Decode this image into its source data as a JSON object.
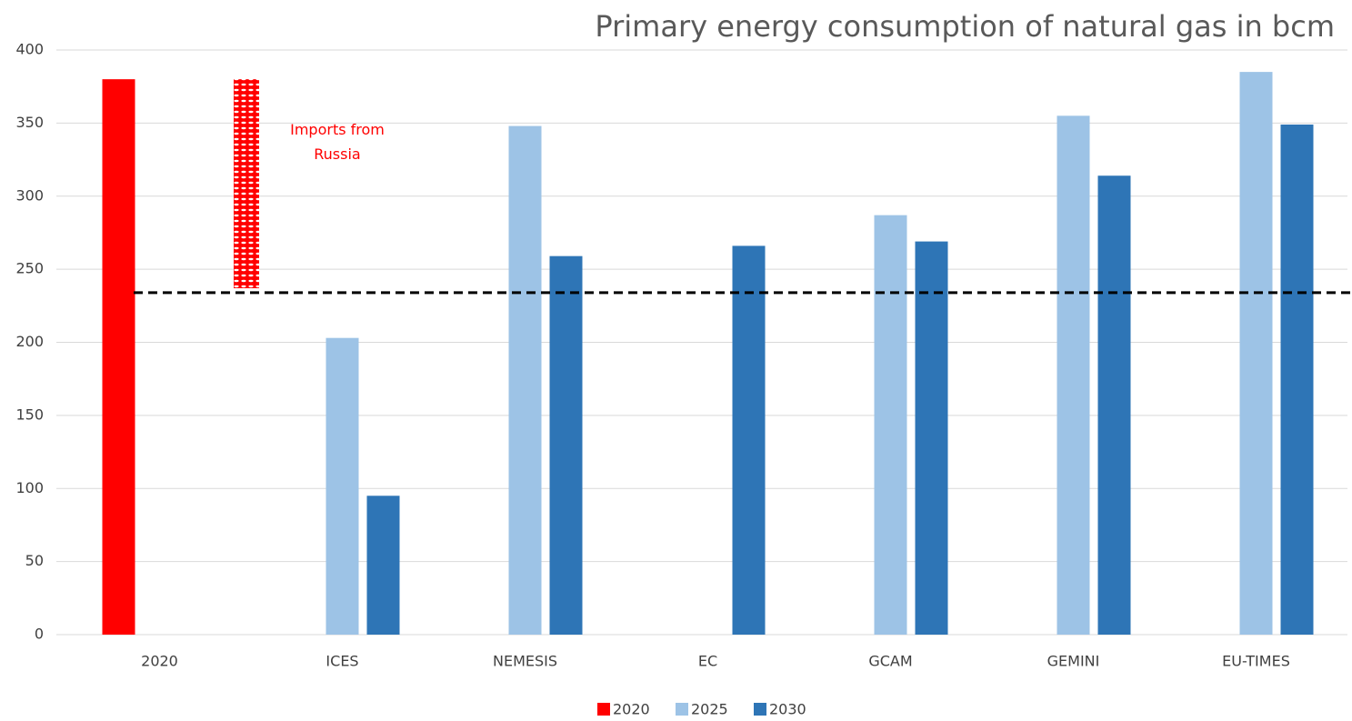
{
  "chart_data": {
    "type": "bar",
    "title": "Primary energy consumption of natural gas in bcm",
    "categories": [
      "2020",
      "ICES",
      "NEMESIS",
      "EC",
      "GCAM",
      "GEMINI",
      "EU-TIMES"
    ],
    "series": [
      {
        "name": "2020",
        "color": "#ff0000",
        "values": [
          380,
          null,
          null,
          null,
          null,
          null,
          null
        ]
      },
      {
        "name": "2025",
        "color": "#9dc3e6",
        "values": [
          null,
          203,
          348,
          null,
          287,
          355,
          385
        ]
      },
      {
        "name": "2030",
        "color": "#2e75b6",
        "values": [
          null,
          95,
          259,
          266,
          269,
          314,
          349
        ]
      }
    ],
    "imports_bar": {
      "low": 237,
      "high": 380,
      "color": "#ff0000",
      "label_lines": [
        "Imports from",
        "Russia"
      ]
    },
    "reference_line": 234,
    "ylim": [
      0,
      400
    ],
    "yticks": [
      0,
      50,
      100,
      150,
      200,
      250,
      300,
      350,
      400
    ],
    "grid": true,
    "legend": "bottom"
  }
}
